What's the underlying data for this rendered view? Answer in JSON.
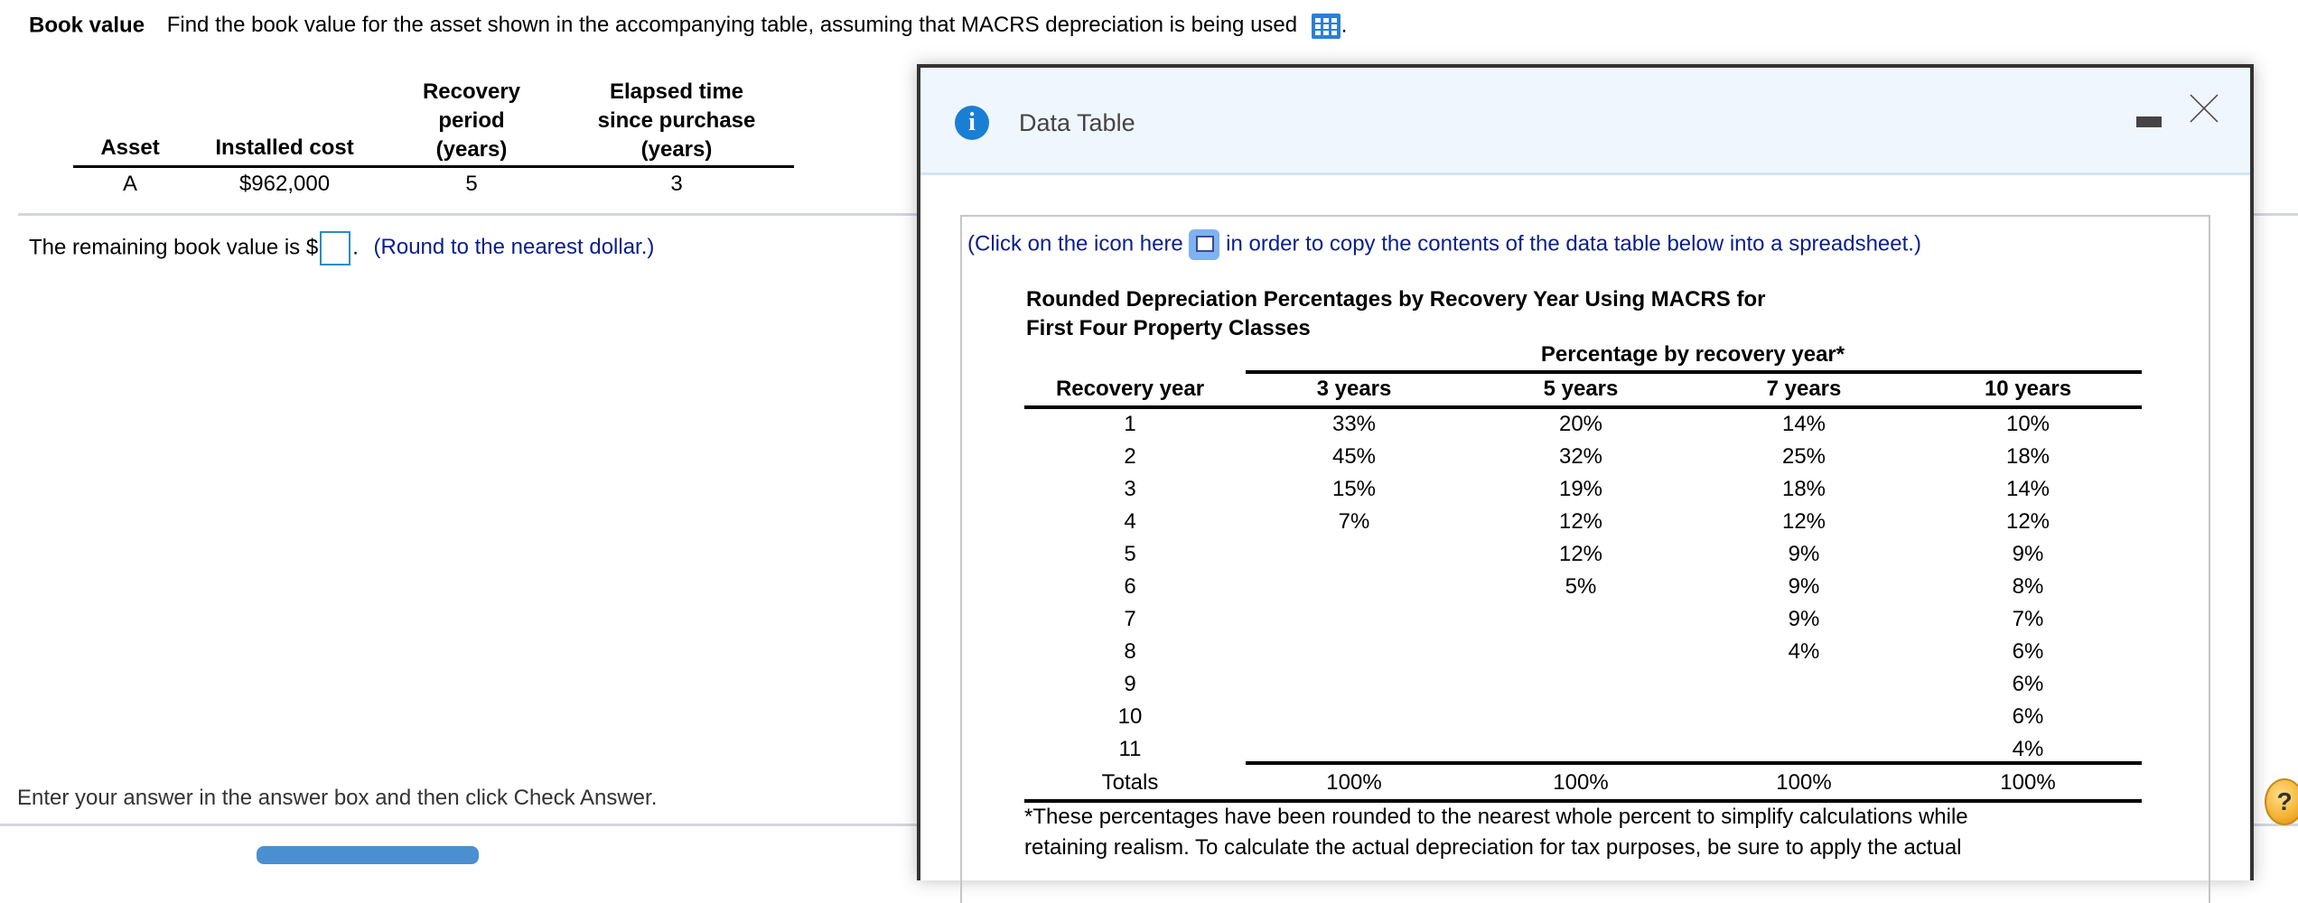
{
  "question": {
    "label": "Book value",
    "text": "Find the book value for the asset shown in the accompanying table, assuming that MACRS depreciation is being used",
    "period": ".",
    "table_icon": "table-grid-icon"
  },
  "asset_table": {
    "headers": [
      "Asset",
      "Installed cost",
      "Recovery period (years)",
      "Elapsed time since purchase (years)"
    ],
    "header_lines": {
      "recovery": [
        "Recovery",
        "period",
        "(years)"
      ],
      "elapsed": [
        "Elapsed time",
        "since purchase",
        "(years)"
      ]
    },
    "rows": [
      [
        "A",
        "$962,000",
        "5",
        "3"
      ]
    ]
  },
  "answer": {
    "prefix": "The remaining book value is $",
    "value": "",
    "suffix": ".",
    "hint": "(Round to the nearest dollar.)"
  },
  "footer": {
    "instruction": "Enter your answer in the answer box and then click Check Answer."
  },
  "popup": {
    "title": "Data Table",
    "info_icon": "info-icon",
    "copy_text_before": "(Click on the icon here",
    "copy_text_after": "in order to copy the contents of the data table below into a spreadsheet.)",
    "table_title_line1": "Rounded Depreciation Percentages by Recovery Year Using MACRS for",
    "table_title_line2": "First Four Property Classes",
    "group_header": "Percentage by recovery year*",
    "columns": [
      "Recovery year",
      "3 years",
      "5 years",
      "7 years",
      "10 years"
    ],
    "rows": [
      [
        "1",
        "33%",
        "20%",
        "14%",
        "10%"
      ],
      [
        "2",
        "45%",
        "32%",
        "25%",
        "18%"
      ],
      [
        "3",
        "15%",
        "19%",
        "18%",
        "14%"
      ],
      [
        "4",
        "7%",
        "12%",
        "12%",
        "12%"
      ],
      [
        "5",
        "",
        "12%",
        "9%",
        "9%"
      ],
      [
        "6",
        "",
        "5%",
        "9%",
        "8%"
      ],
      [
        "7",
        "",
        "",
        "9%",
        "7%"
      ],
      [
        "8",
        "",
        "",
        "4%",
        "6%"
      ],
      [
        "9",
        "",
        "",
        "",
        "6%"
      ],
      [
        "10",
        "",
        "",
        "",
        "6%"
      ],
      [
        "11",
        "",
        "",
        "",
        "4%"
      ]
    ],
    "totals": [
      "Totals",
      "100%",
      "100%",
      "100%",
      "100%"
    ],
    "footnote_line1": "*These percentages have been rounded to the nearest whole percent to simplify calculations while",
    "footnote_line2": "retaining realism. To calculate the actual depreciation for tax purposes, be sure to apply the actual"
  },
  "colors": {
    "link_blue": "#0a1e8c",
    "accent_blue": "#2b8cc4",
    "help_orange": "#f5b335"
  }
}
